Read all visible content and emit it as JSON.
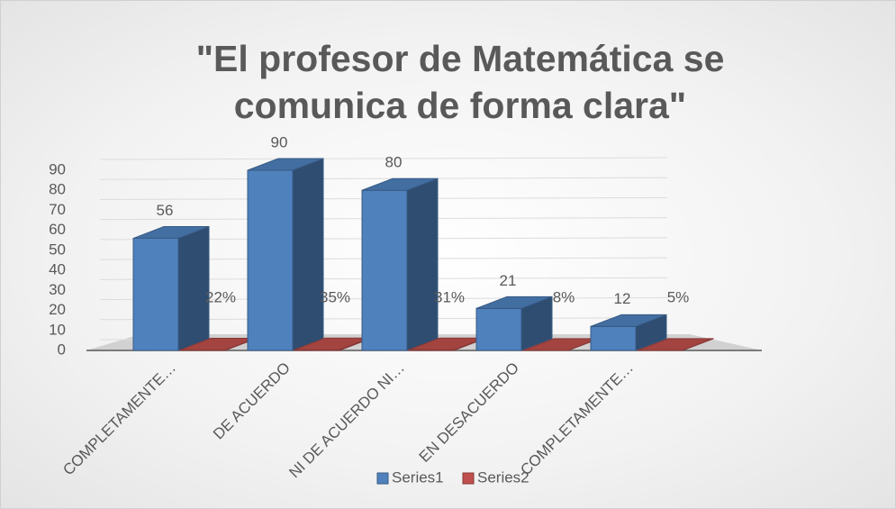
{
  "chart_data": {
    "type": "bar3d",
    "title": "\"El profesor de Matemática se comunica de forma clara\"",
    "categories": [
      "COMPLETAMENTE…",
      "DE ACUERDO",
      "NI DE ACUERDO NI…",
      "EN DESACUERDO",
      "COMPLETAMENTE…"
    ],
    "series": [
      {
        "name": "Series1",
        "color": "#4f81bd",
        "values": [
          56,
          90,
          80,
          21,
          12
        ]
      },
      {
        "name": "Series2",
        "color": "#c0504d",
        "values": [
          0.22,
          0.35,
          0.31,
          0.08,
          0.05
        ],
        "value_labels": [
          "22%",
          "35%",
          "31%",
          "8%",
          "5%"
        ]
      }
    ],
    "ylim": [
      0,
      90
    ],
    "yticks": [
      0,
      10,
      20,
      30,
      40,
      50,
      60,
      70,
      80,
      90
    ],
    "grid": true,
    "legend": "bottom"
  }
}
